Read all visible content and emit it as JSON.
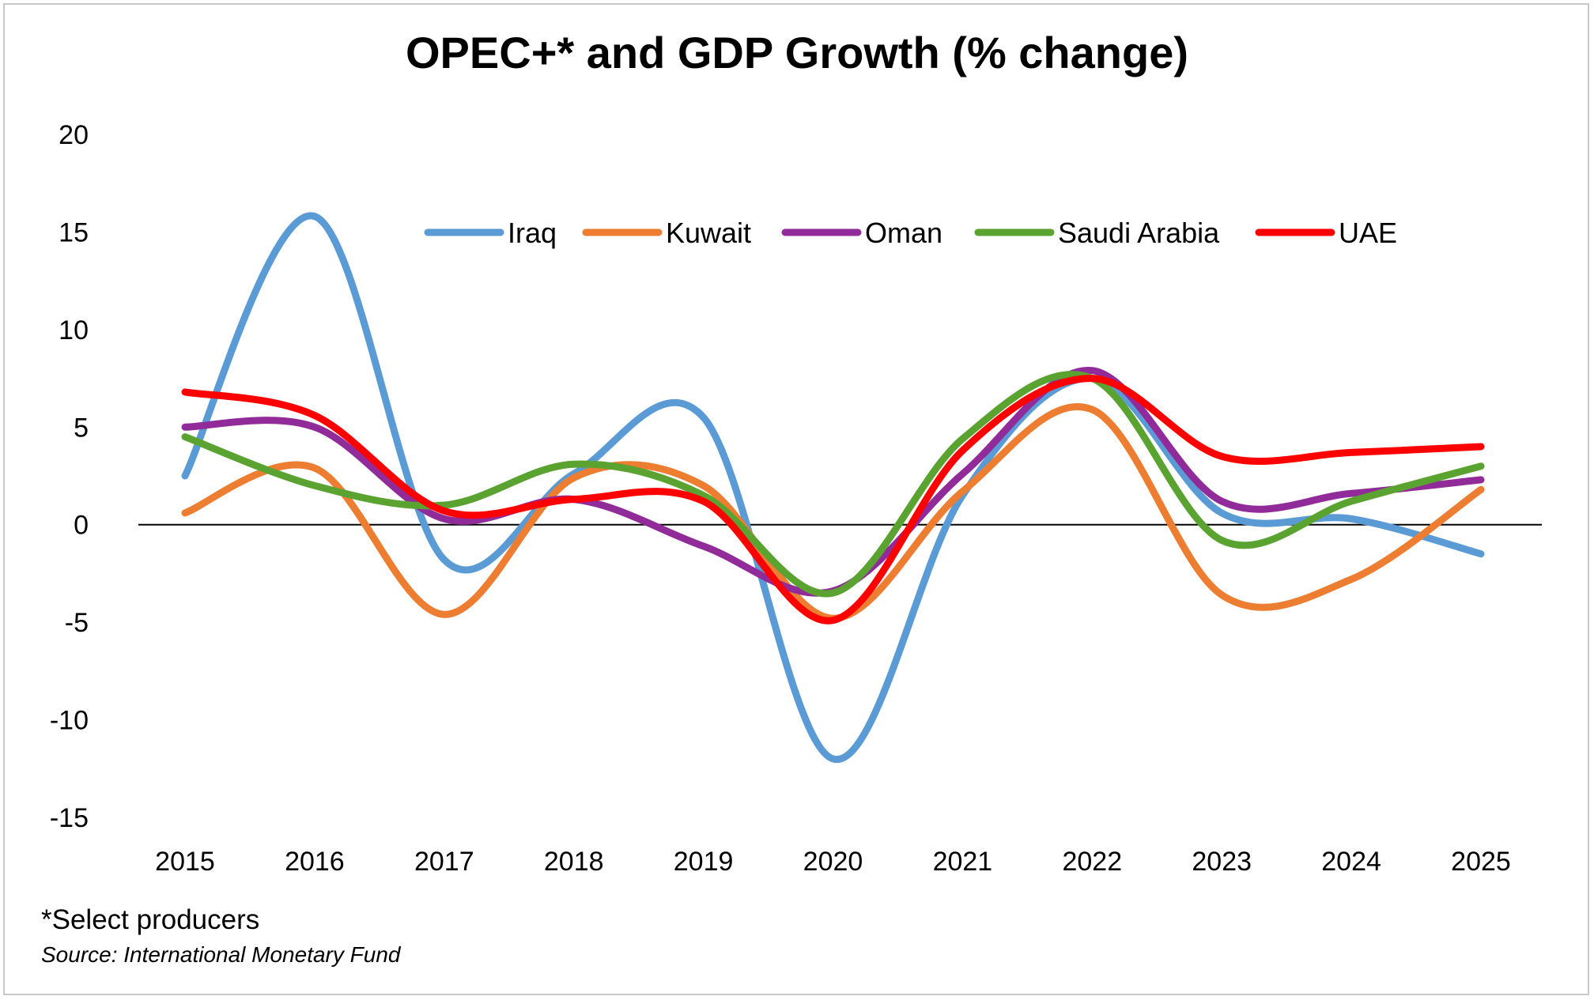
{
  "chart_data": {
    "type": "line",
    "title": "OPEC+* and GDP Growth (% change)",
    "xlabel": "",
    "ylabel": "",
    "categories": [
      "2015",
      "2016",
      "2017",
      "2018",
      "2019",
      "2020",
      "2021",
      "2022",
      "2023",
      "2024",
      "2025"
    ],
    "ylim": [
      -15,
      20
    ],
    "yticks": [
      20,
      15,
      10,
      5,
      0,
      -5,
      -10,
      -15
    ],
    "zero_line": true,
    "gridlines": false,
    "legend_position": "top-right",
    "series": [
      {
        "name": "Iraq",
        "color": "#5B9BD5",
        "values": [
          2.5,
          15.8,
          -1.8,
          2.6,
          5.5,
          -12.0,
          1.5,
          7.5,
          0.6,
          0.3,
          -1.5
        ]
      },
      {
        "name": "Kuwait",
        "color": "#ED7D31",
        "values": [
          0.6,
          2.9,
          -4.6,
          2.4,
          2.0,
          -4.8,
          1.7,
          5.9,
          -3.6,
          -2.8,
          1.8
        ]
      },
      {
        "name": "Oman",
        "color": "#922B9A",
        "values": [
          5.0,
          5.0,
          0.3,
          1.3,
          -1.1,
          -3.4,
          2.6,
          7.9,
          1.2,
          1.6,
          2.3
        ]
      },
      {
        "name": "Saudi Arabia",
        "color": "#5BA331",
        "values": [
          4.5,
          2.0,
          1.0,
          3.1,
          1.5,
          -3.5,
          4.4,
          7.5,
          -0.8,
          1.2,
          3.0
        ]
      },
      {
        "name": "UAE",
        "color": "#FF0000",
        "values": [
          6.8,
          5.6,
          0.7,
          1.3,
          1.2,
          -4.9,
          3.8,
          7.5,
          3.5,
          3.7,
          4.0
        ]
      }
    ]
  },
  "footnote": "*Select producers",
  "source": "Source: International Monetary Fund"
}
